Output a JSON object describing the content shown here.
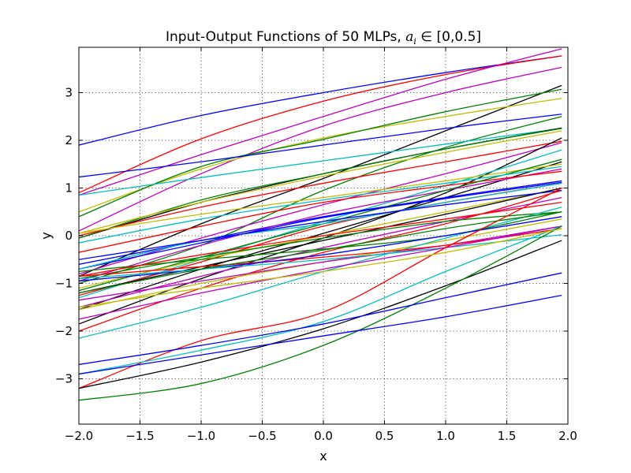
{
  "chart_data": {
    "type": "line",
    "title": {
      "prefix": "Input-Output Functions of 50 MLPs, ",
      "math": "a",
      "subscript": "i",
      "relation": " ∈ ",
      "interval": "[0,0.5]"
    },
    "xlabel": "x",
    "ylabel": "y",
    "xlim": [
      -2.0,
      2.0
    ],
    "ylim": [
      -3.95,
      3.95
    ],
    "xticks": [
      -2.0,
      -1.5,
      -1.0,
      -0.5,
      0.0,
      0.5,
      1.0,
      1.5,
      2.0
    ],
    "xtick_labels": [
      "−2.0",
      "−1.5",
      "−1.0",
      "−0.5",
      "0.0",
      "0.5",
      "1.0",
      "1.5",
      "2.0"
    ],
    "yticks": [
      -3,
      -2,
      -1,
      0,
      1,
      2,
      3
    ],
    "ytick_labels": [
      "−3",
      "−2",
      "−1",
      "0",
      "1",
      "2",
      "3"
    ],
    "grid": true,
    "legend": "none",
    "x": [
      -2.0,
      -1.0,
      0.0,
      1.0,
      1.95
    ],
    "series": [
      {
        "color": "#0000ff",
        "values": [
          1.9,
          2.52,
          3.0,
          3.42,
          3.77
        ]
      },
      {
        "color": "#ff0000",
        "values": [
          0.9,
          2.03,
          2.82,
          3.38,
          3.77
        ]
      },
      {
        "color": "#bf00bf",
        "values": [
          0.85,
          1.7,
          2.5,
          3.28,
          3.92
        ]
      },
      {
        "color": "#bf00bf",
        "values": [
          0.1,
          1.3,
          2.3,
          3.0,
          3.53
        ]
      },
      {
        "color": "#000000",
        "values": [
          -0.85,
          0.25,
          1.2,
          2.2,
          3.15
        ]
      },
      {
        "color": "#bfbf00",
        "values": [
          0.5,
          1.4,
          2.05,
          2.5,
          2.88
        ]
      },
      {
        "color": "#008000",
        "values": [
          0.4,
          1.45,
          2.02,
          2.6,
          3.07
        ]
      },
      {
        "color": "#0000ff",
        "values": [
          1.23,
          1.55,
          1.9,
          2.25,
          2.55
        ]
      },
      {
        "color": "#008000",
        "values": [
          -1.0,
          -0.2,
          0.95,
          1.85,
          2.5
        ]
      },
      {
        "color": "#00bfbf",
        "values": [
          0.85,
          1.22,
          1.57,
          1.92,
          2.25
        ]
      },
      {
        "color": "#000000",
        "values": [
          -0.05,
          0.7,
          1.3,
          1.82,
          2.26
        ]
      },
      {
        "color": "#008000",
        "values": [
          -0.05,
          0.75,
          1.3,
          1.82,
          2.25
        ]
      },
      {
        "color": "#bfbf00",
        "values": [
          0.05,
          0.7,
          1.25,
          1.75,
          2.2
        ]
      },
      {
        "color": "#ff0000",
        "values": [
          0.0,
          0.6,
          1.1,
          1.55,
          1.98
        ]
      },
      {
        "color": "#000000",
        "values": [
          -1.55,
          -0.7,
          0.05,
          0.8,
          1.55
        ]
      },
      {
        "color": "#bf00bf",
        "values": [
          -0.8,
          -0.05,
          0.65,
          1.3,
          1.95
        ]
      },
      {
        "color": "#000000",
        "values": [
          -1.85,
          -0.9,
          -0.05,
          0.9,
          2.05
        ]
      },
      {
        "color": "#00bfbf",
        "values": [
          -1.3,
          -0.5,
          0.3,
          1.05,
          1.8
        ]
      },
      {
        "color": "#bfbf00",
        "values": [
          0.05,
          0.45,
          0.8,
          1.15,
          1.5
        ]
      },
      {
        "color": "#0000ff",
        "values": [
          -0.6,
          -0.1,
          0.4,
          0.8,
          1.15
        ]
      },
      {
        "color": "#bf00bf",
        "values": [
          -0.95,
          -0.2,
          0.45,
          0.95,
          1.4
        ]
      },
      {
        "color": "#ff0000",
        "values": [
          -0.35,
          0.2,
          0.7,
          1.05,
          1.35
        ]
      },
      {
        "color": "#008000",
        "values": [
          -1.15,
          -0.45,
          0.25,
          0.95,
          1.6
        ]
      },
      {
        "color": "#0000ff",
        "values": [
          -0.7,
          -0.15,
          0.38,
          0.78,
          1.12
        ]
      },
      {
        "color": "#ff0000",
        "values": [
          -1.25,
          -0.55,
          0.2,
          0.7,
          1.1
        ]
      },
      {
        "color": "#00bfbf",
        "values": [
          -0.7,
          -0.1,
          0.25,
          0.7,
          1.1
        ]
      },
      {
        "color": "#bfbf00",
        "values": [
          -1.1,
          -0.5,
          0.0,
          0.5,
          1.0
        ]
      },
      {
        "color": "#000000",
        "values": [
          -1.2,
          -0.65,
          -0.1,
          0.45,
          1.0
        ]
      },
      {
        "color": "#bf00bf",
        "values": [
          -1.5,
          -0.85,
          -0.25,
          0.3,
          0.8
        ]
      },
      {
        "color": "#ff0000",
        "values": [
          -2.0,
          -1.1,
          -0.35,
          0.25,
          0.95
        ]
      },
      {
        "color": "#0000ff",
        "values": [
          -0.5,
          -0.1,
          0.3,
          0.65,
          0.95
        ]
      },
      {
        "color": "#008000",
        "values": [
          -0.9,
          -0.45,
          -0.05,
          0.3,
          0.5
        ]
      },
      {
        "color": "#bfbf00",
        "values": [
          -1.55,
          -1.0,
          -0.55,
          -0.1,
          0.35
        ]
      },
      {
        "color": "#bf00bf",
        "values": [
          -1.35,
          -0.95,
          -0.55,
          -0.2,
          0.2
        ]
      },
      {
        "color": "#00bfbf",
        "values": [
          -2.15,
          -1.5,
          -0.75,
          -0.05,
          0.6
        ]
      },
      {
        "color": "#ff0000",
        "values": [
          -0.85,
          -0.65,
          -0.45,
          -0.2,
          0.15
        ]
      },
      {
        "color": "#008000",
        "values": [
          -0.75,
          -0.5,
          -0.28,
          0.0,
          0.5
        ]
      },
      {
        "color": "#0000ff",
        "values": [
          -0.95,
          -0.7,
          -0.4,
          0.0,
          0.4
        ]
      },
      {
        "color": "#00bfbf",
        "values": [
          -0.9,
          -0.7,
          -0.5,
          -0.25,
          0.02
        ]
      },
      {
        "color": "#bf00bf",
        "values": [
          -1.75,
          -1.2,
          -0.7,
          -0.25,
          0.2
        ]
      },
      {
        "color": "#ff0000",
        "values": [
          -3.2,
          -2.2,
          -1.6,
          -0.25,
          1.0
        ]
      },
      {
        "color": "#00bfbf",
        "values": [
          -2.9,
          -2.4,
          -1.8,
          -0.75,
          0.2
        ]
      },
      {
        "color": "#000000",
        "values": [
          -3.2,
          -2.65,
          -1.95,
          -1.05,
          -0.1
        ]
      },
      {
        "color": "#008000",
        "values": [
          -3.45,
          -3.1,
          -2.3,
          -1.1,
          0.2
        ]
      },
      {
        "color": "#0000ff",
        "values": [
          -2.7,
          -2.3,
          -1.85,
          -1.3,
          -0.78
        ]
      },
      {
        "color": "#0000ff",
        "values": [
          -2.9,
          -2.5,
          -2.1,
          -1.7,
          -1.25
        ]
      },
      {
        "color": "#bfbf00",
        "values": [
          -1.5,
          -1.1,
          -0.75,
          -0.35,
          0.15
        ]
      },
      {
        "color": "#ff0000",
        "values": [
          -0.85,
          -0.4,
          0.0,
          0.35,
          0.7
        ]
      },
      {
        "color": "#00bfbf",
        "values": [
          -0.15,
          0.35,
          0.75,
          1.1,
          1.45
        ]
      },
      {
        "color": "#008000",
        "values": [
          -1.2,
          -0.7,
          -0.3,
          0.15,
          0.5
        ]
      }
    ]
  }
}
